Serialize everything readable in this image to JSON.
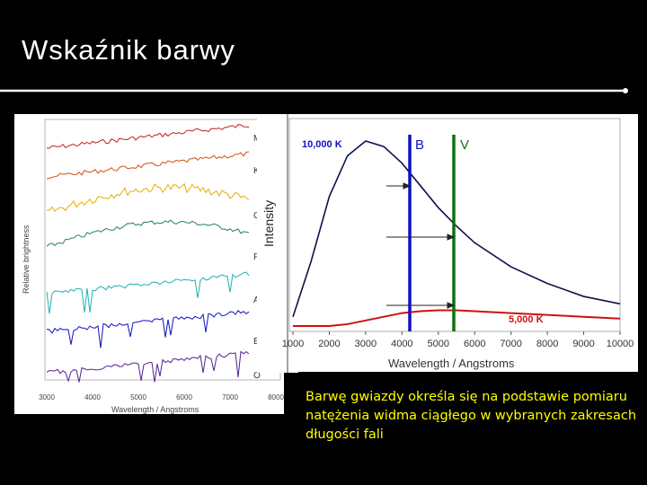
{
  "slide": {
    "title": "Wskaźnik barwy",
    "caption": "Barwę gwiazdy określa się na podstawie pomiaru natężenia widma ciągłego w wybranych zakresach długości fali"
  },
  "left_chart": {
    "ylabel": "Relative brightness",
    "xlabel": "Wavelength / Angstroms",
    "xticks": [
      "3000",
      "4000",
      "5000",
      "6000",
      "7000",
      "8000"
    ],
    "classes": [
      "M",
      "K",
      "G",
      "F",
      "A",
      "B",
      "O"
    ]
  },
  "right_chart": {
    "ylabel": "Intensity",
    "xlabel": "Wavelength / Angstroms",
    "xticks": [
      "1000",
      "2000",
      "3000",
      "4000",
      "5000",
      "6000",
      "7000",
      "8000",
      "9000",
      "10000"
    ],
    "hot_label": "10,000 K",
    "cool_label": "5,000 K",
    "band_b": "B",
    "band_v": "V"
  },
  "colors": {
    "background": "#000000",
    "title": "#ffffff",
    "caption": "#ffff00",
    "band_b": "#1010c0",
    "band_v": "#107010",
    "hot_curve": "#10104a",
    "cool_curve": "#d01010",
    "hot_label": "#1010c0",
    "cool_label": "#d01010"
  },
  "chart_data": {
    "type": "line",
    "xlabel": "Wavelength / Angstroms",
    "ylabel": "Intensity",
    "xlim": [
      1000,
      10000
    ],
    "x": [
      1000,
      1500,
      2000,
      2500,
      3000,
      3500,
      4000,
      4500,
      5000,
      5500,
      6000,
      7000,
      8000,
      9000,
      10000
    ],
    "series": [
      {
        "name": "10,000 K",
        "values": [
          0.05,
          0.35,
          0.7,
          0.92,
          1.0,
          0.97,
          0.88,
          0.76,
          0.64,
          0.54,
          0.45,
          0.32,
          0.23,
          0.16,
          0.12
        ]
      },
      {
        "name": "5,000 K",
        "values": [
          0.0,
          0.0,
          0.0,
          0.01,
          0.03,
          0.05,
          0.07,
          0.08,
          0.085,
          0.085,
          0.08,
          0.07,
          0.06,
          0.05,
          0.04
        ]
      }
    ],
    "annotations": [
      "B",
      "V"
    ]
  }
}
